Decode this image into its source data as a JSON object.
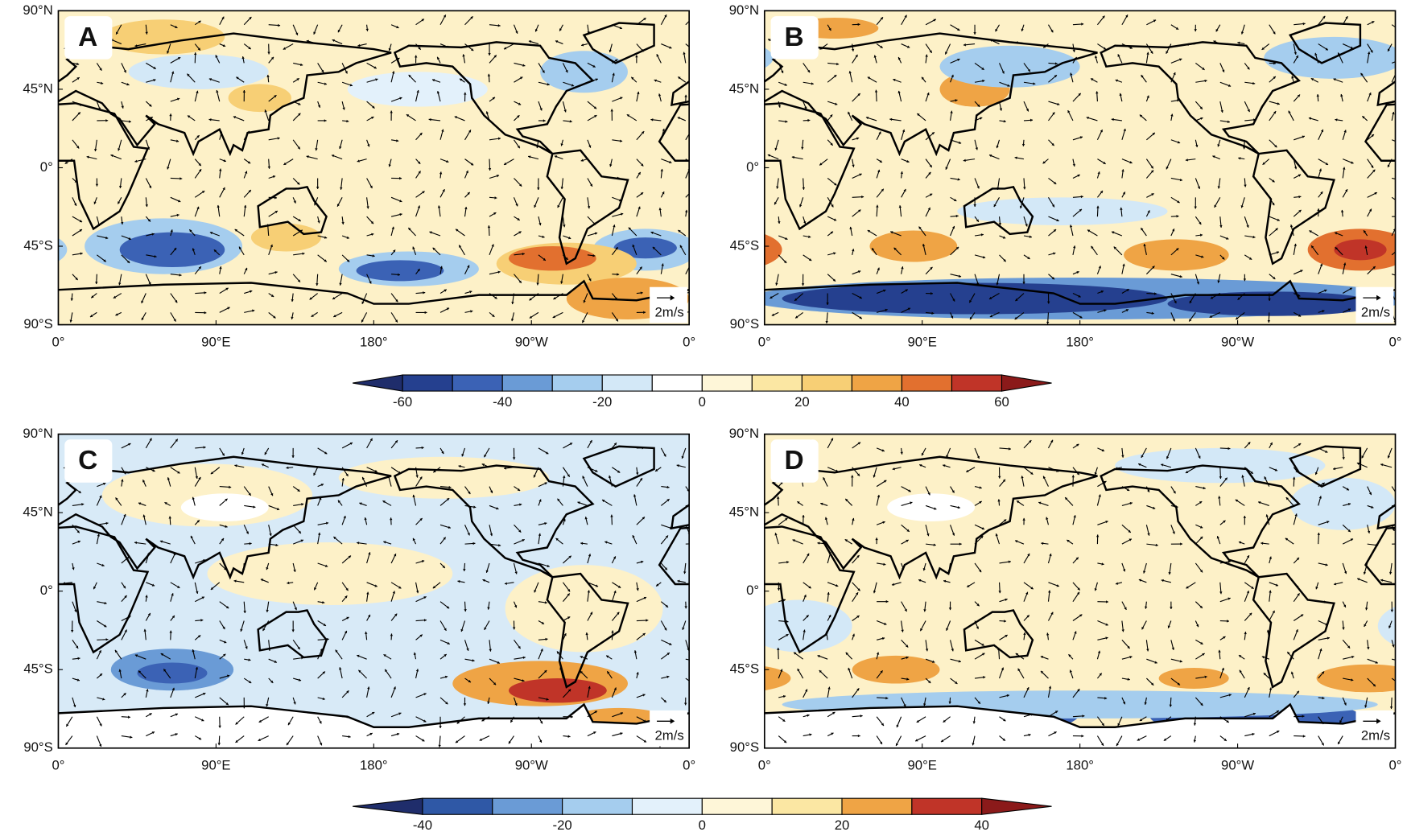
{
  "panels": [
    {
      "label": "A",
      "reference_vector": "2m/s"
    },
    {
      "label": "B",
      "reference_vector": "2m/s"
    },
    {
      "label": "C",
      "reference_vector": "2m/s"
    },
    {
      "label": "D",
      "reference_vector": "2m/s"
    }
  ],
  "latitude_ticks": [
    "90°N",
    "45°N",
    "0°",
    "45°S",
    "90°S"
  ],
  "longitude_ticks": [
    "0°",
    "90°E",
    "180°",
    "90°W",
    "0°"
  ],
  "colorbars": [
    {
      "levels": [
        -60,
        -50,
        -40,
        -30,
        -20,
        -10,
        0,
        10,
        20,
        30,
        40,
        50,
        60
      ],
      "colors": [
        "#1f2d6b",
        "#25408f",
        "#3b62b5",
        "#6a9bd6",
        "#a5cdee",
        "#d3e8f7",
        "#ffffff",
        "#fef6d8",
        "#fbe7a3",
        "#f7cf75",
        "#efa445",
        "#e2702f",
        "#c03428",
        "#8b1a1a"
      ],
      "ticks": [
        -60,
        -40,
        -20,
        0,
        20,
        40,
        60
      ]
    },
    {
      "levels": [
        -40,
        -30,
        -20,
        -10,
        0,
        10,
        20,
        30,
        40
      ],
      "colors": [
        "#1f2d6b",
        "#2f58a6",
        "#6a9bd6",
        "#a5cdee",
        "#e3f1fb",
        "#fef6d8",
        "#fbe7a3",
        "#efa445",
        "#c03428",
        "#8b1a1a"
      ],
      "ticks": [
        -40,
        -20,
        0,
        20,
        40
      ]
    }
  ]
}
